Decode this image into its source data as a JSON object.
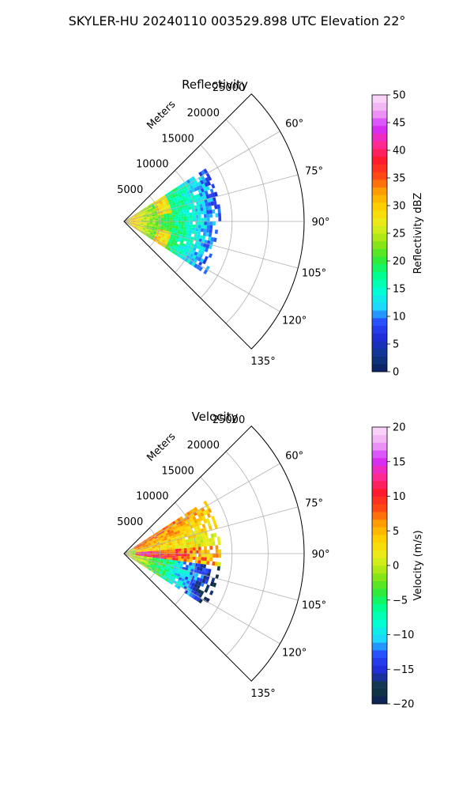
{
  "figure": {
    "title": "SKYLER-HU  20240110  003529.898 UTC Elevation 22°"
  },
  "chart_data": [
    {
      "type": "polar-sector",
      "title": "Reflectivity",
      "radial_axis_label": "Meters",
      "radial_ticks": [
        5000,
        10000,
        15000,
        20000,
        25000
      ],
      "radial_tick_labels": [
        "5000",
        "10000",
        "15000",
        "20000",
        "25000"
      ],
      "rlim": [
        0,
        25000
      ],
      "angle_range_deg": [
        45,
        135
      ],
      "angle_ticks": [
        60,
        75,
        90,
        105,
        120,
        135
      ],
      "angle_tick_labels": [
        "60°",
        "75°",
        "90°",
        "105°",
        "120°",
        "135°"
      ],
      "grid": true,
      "data_extent": {
        "angle_deg": [
          57,
          123
        ],
        "range_m": [
          0,
          13500
        ]
      },
      "colorbar": {
        "label": "Reflectivity dBZ",
        "range": [
          0,
          50
        ],
        "ticks": [
          0,
          5,
          10,
          15,
          20,
          25,
          30,
          35,
          40,
          45,
          50
        ],
        "tick_labels": [
          "0",
          "5",
          "10",
          "15",
          "20",
          "25",
          "30",
          "35",
          "40",
          "45",
          "50"
        ],
        "colors": [
          "#0b1f5c",
          "#113a8a",
          "#1d2ad0",
          "#2a48ff",
          "#1ed8ff",
          "#00ffd0",
          "#00ff8a",
          "#37e82b",
          "#9be414",
          "#e6ef1e",
          "#ffd600",
          "#ffa500",
          "#ff4a12",
          "#ff1a2e",
          "#ff2a9a",
          "#d22dfc",
          "#f0a6f2",
          "#fbe0fb"
        ]
      }
    },
    {
      "type": "polar-sector",
      "title": "Velocity",
      "radial_axis_label": "Meters",
      "radial_ticks": [
        5000,
        10000,
        15000,
        20000,
        25000
      ],
      "radial_tick_labels": [
        "5000",
        "10000",
        "15000",
        "20000",
        "25000"
      ],
      "rlim": [
        0,
        25000
      ],
      "angle_range_deg": [
        45,
        135
      ],
      "angle_ticks": [
        60,
        75,
        90,
        105,
        120,
        135
      ],
      "angle_tick_labels": [
        "60°",
        "75°",
        "90°",
        "105°",
        "120°",
        "135°"
      ],
      "grid": true,
      "data_extent": {
        "angle_deg": [
          57,
          123
        ],
        "range_m": [
          0,
          13500
        ]
      },
      "colorbar": {
        "label": "Velocity (m/s)",
        "range": [
          -20,
          20
        ],
        "ticks": [
          -20,
          -15,
          -10,
          -5,
          0,
          5,
          10,
          15,
          20
        ],
        "tick_labels": [
          "−20",
          "−15",
          "−10",
          "−5",
          "0",
          "5",
          "10",
          "15",
          "20"
        ],
        "colors": [
          "#0b1f5c",
          "#113a3a",
          "#1d2ad0",
          "#2a48ff",
          "#1ed8ff",
          "#00ffd0",
          "#00ff8a",
          "#37e82b",
          "#9be414",
          "#e6ef1e",
          "#ffd600",
          "#ffa500",
          "#ff4a12",
          "#ff1a2e",
          "#ff2a9a",
          "#d22dfc",
          "#f0a6f2",
          "#fbe0fb"
        ]
      }
    }
  ]
}
